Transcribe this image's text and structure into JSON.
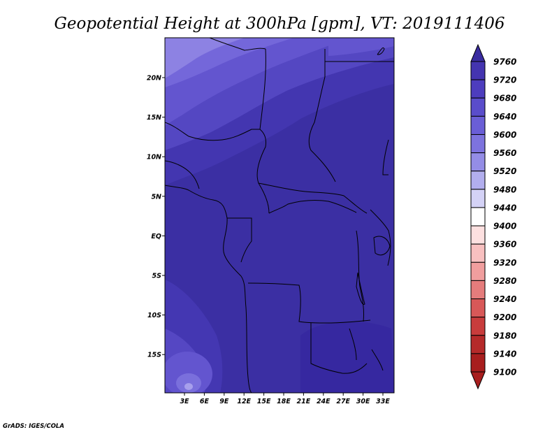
{
  "title": "Geopotential Height at 300hPa [gpm], VT: 2019111406",
  "footer": "GrADS: IGES/COLA",
  "map": {
    "lon_labels": [
      "3E",
      "6E",
      "9E",
      "12E",
      "15E",
      "18E",
      "21E",
      "24E",
      "27E",
      "30E",
      "33E"
    ],
    "lat_labels": [
      "20N",
      "15N",
      "10N",
      "5N",
      "EQ",
      "5S",
      "10S",
      "15S"
    ]
  },
  "colorbar": {
    "levels": [
      "9760",
      "9720",
      "9680",
      "9640",
      "9600",
      "9560",
      "9520",
      "9480",
      "9440",
      "9400",
      "9360",
      "9320",
      "9280",
      "9240",
      "9200",
      "9180",
      "9140",
      "9100"
    ],
    "colors": [
      "#3a2ca0",
      "#4434b0",
      "#4d3dbe",
      "#5a4dcb",
      "#6a5ed6",
      "#7d73de",
      "#948de6",
      "#b2aeee",
      "#d4d2f6",
      "#ffffff",
      "#fde0e0",
      "#f8c0c0",
      "#f09e9e",
      "#e57c7c",
      "#d85858",
      "#c83c3c",
      "#b52a2a",
      "#a81e1e"
    ]
  }
}
